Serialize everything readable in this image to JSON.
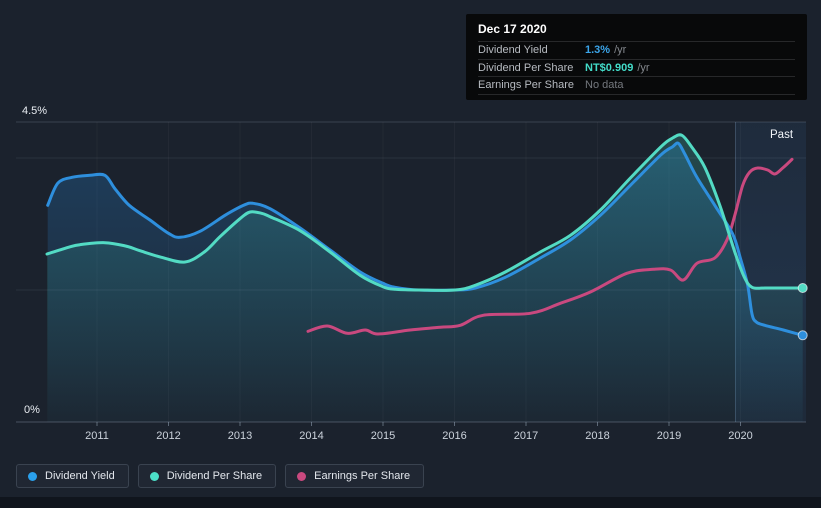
{
  "tooltip": {
    "date": "Dec 17 2020",
    "rows": [
      {
        "label": "Dividend Yield",
        "value": "1.3%",
        "suffix": "/yr",
        "value_color": "#3ba5ea",
        "muted": false
      },
      {
        "label": "Dividend Per Share",
        "value": "NT$0.909",
        "suffix": "/yr",
        "value_color": "#43dcc9",
        "muted": false
      },
      {
        "label": "Earnings Per Share",
        "value": "No data",
        "suffix": "",
        "value_color": "#75797f",
        "muted": true
      }
    ]
  },
  "chart": {
    "past_label": "Past",
    "y_axis": {
      "top_label": "4.5%",
      "bottom_label": "0%"
    }
  },
  "legend": [
    {
      "label": "Dividend Yield",
      "color": "#2aa0ec"
    },
    {
      "label": "Dividend Per Share",
      "color": "#4cdfc8"
    },
    {
      "label": "Earnings Per Share",
      "color": "#c9497f"
    }
  ],
  "colors": {
    "background": "#1b222d",
    "past_band": "#3e7dc3",
    "gridline": "#c8d7eb",
    "axis_line": "#a0afc3"
  },
  "chart_data": {
    "type": "line",
    "title": "",
    "xlabel": "",
    "ylabel": "",
    "ylim": [
      0,
      4.5
    ],
    "xlim": [
      2010.3,
      2020.92
    ],
    "y_tick_labels": [
      "0%",
      "4.5%"
    ],
    "x_ticks": [
      2011,
      2012,
      2013,
      2014,
      2015,
      2016,
      2017,
      2018,
      2019,
      2020
    ],
    "gridlines_pct": [
      4.5,
      3.96,
      1.98
    ],
    "past_region_start": 2019.93,
    "legend_position": "bottom",
    "series": [
      {
        "name": "Dividend Yield",
        "color": "#2e8fdd",
        "unit": "%",
        "current_value": "1.3% /yr",
        "end_dot": true,
        "fill": true,
        "points": [
          [
            2010.31,
            3.25
          ],
          [
            2010.45,
            3.58
          ],
          [
            2010.65,
            3.67
          ],
          [
            2010.9,
            3.7
          ],
          [
            2011.11,
            3.7
          ],
          [
            2011.25,
            3.5
          ],
          [
            2011.45,
            3.25
          ],
          [
            2011.74,
            3.03
          ],
          [
            2012.0,
            2.83
          ],
          [
            2012.16,
            2.77
          ],
          [
            2012.44,
            2.86
          ],
          [
            2012.79,
            3.1
          ],
          [
            2013.05,
            3.25
          ],
          [
            2013.18,
            3.28
          ],
          [
            2013.42,
            3.2
          ],
          [
            2013.84,
            2.91
          ],
          [
            2014.26,
            2.58
          ],
          [
            2014.68,
            2.25
          ],
          [
            2015.0,
            2.08
          ],
          [
            2015.17,
            2.02
          ],
          [
            2015.5,
            1.98
          ],
          [
            2016.01,
            1.98
          ],
          [
            2016.29,
            2.01
          ],
          [
            2016.71,
            2.17
          ],
          [
            2017.2,
            2.46
          ],
          [
            2017.62,
            2.73
          ],
          [
            2018.04,
            3.1
          ],
          [
            2018.46,
            3.55
          ],
          [
            2018.88,
            4.0
          ],
          [
            2019.05,
            4.13
          ],
          [
            2019.13,
            4.18
          ],
          [
            2019.22,
            4.02
          ],
          [
            2019.39,
            3.67
          ],
          [
            2019.64,
            3.25
          ],
          [
            2019.89,
            2.82
          ],
          [
            2020.0,
            2.45
          ],
          [
            2020.1,
            2.05
          ],
          [
            2020.16,
            1.62
          ],
          [
            2020.22,
            1.5
          ],
          [
            2020.34,
            1.45
          ],
          [
            2020.6,
            1.38
          ],
          [
            2020.87,
            1.3
          ]
        ]
      },
      {
        "name": "Dividend Per Share",
        "color": "#53dbc4",
        "unit": "NT$ (plotted as yield-equivalent %)",
        "current_value": "NT$0.909 /yr",
        "end_dot": true,
        "fill": true,
        "points": [
          [
            2010.3,
            2.52
          ],
          [
            2010.6,
            2.62
          ],
          [
            2010.76,
            2.66
          ],
          [
            2011.11,
            2.69
          ],
          [
            2011.4,
            2.64
          ],
          [
            2011.6,
            2.57
          ],
          [
            2011.9,
            2.47
          ],
          [
            2012.23,
            2.4
          ],
          [
            2012.5,
            2.55
          ],
          [
            2012.72,
            2.78
          ],
          [
            2013.0,
            3.05
          ],
          [
            2013.14,
            3.15
          ],
          [
            2013.3,
            3.13
          ],
          [
            2013.42,
            3.08
          ],
          [
            2013.84,
            2.87
          ],
          [
            2014.26,
            2.55
          ],
          [
            2014.68,
            2.2
          ],
          [
            2015.0,
            2.03
          ],
          [
            2015.17,
            1.99
          ],
          [
            2015.5,
            1.98
          ],
          [
            2016.01,
            1.98
          ],
          [
            2016.29,
            2.05
          ],
          [
            2016.71,
            2.25
          ],
          [
            2017.2,
            2.55
          ],
          [
            2017.62,
            2.8
          ],
          [
            2018.04,
            3.18
          ],
          [
            2018.46,
            3.66
          ],
          [
            2018.88,
            4.12
          ],
          [
            2019.05,
            4.26
          ],
          [
            2019.18,
            4.3
          ],
          [
            2019.32,
            4.12
          ],
          [
            2019.5,
            3.82
          ],
          [
            2019.71,
            3.25
          ],
          [
            2019.92,
            2.55
          ],
          [
            2020.05,
            2.18
          ],
          [
            2020.16,
            2.02
          ],
          [
            2020.35,
            2.01
          ],
          [
            2020.6,
            2.01
          ],
          [
            2020.87,
            2.01
          ]
        ]
      },
      {
        "name": "Earnings Per Share",
        "color": "#c9497f",
        "unit": "NT$ (plotted as yield-equivalent %)",
        "current_value": "No data",
        "end_dot": false,
        "fill": false,
        "points": [
          [
            2013.95,
            1.36
          ],
          [
            2014.22,
            1.44
          ],
          [
            2014.5,
            1.33
          ],
          [
            2014.75,
            1.38
          ],
          [
            2014.93,
            1.32
          ],
          [
            2015.38,
            1.38
          ],
          [
            2015.8,
            1.42
          ],
          [
            2016.08,
            1.45
          ],
          [
            2016.4,
            1.6
          ],
          [
            2017.06,
            1.63
          ],
          [
            2017.48,
            1.78
          ],
          [
            2017.9,
            1.95
          ],
          [
            2018.41,
            2.23
          ],
          [
            2018.78,
            2.29
          ],
          [
            2019.02,
            2.28
          ],
          [
            2019.2,
            2.13
          ],
          [
            2019.39,
            2.38
          ],
          [
            2019.64,
            2.46
          ],
          [
            2019.81,
            2.73
          ],
          [
            2019.92,
            3.1
          ],
          [
            2020.03,
            3.55
          ],
          [
            2020.13,
            3.75
          ],
          [
            2020.24,
            3.81
          ],
          [
            2020.38,
            3.78
          ],
          [
            2020.48,
            3.72
          ],
          [
            2020.59,
            3.81
          ],
          [
            2020.72,
            3.94
          ]
        ]
      }
    ]
  }
}
